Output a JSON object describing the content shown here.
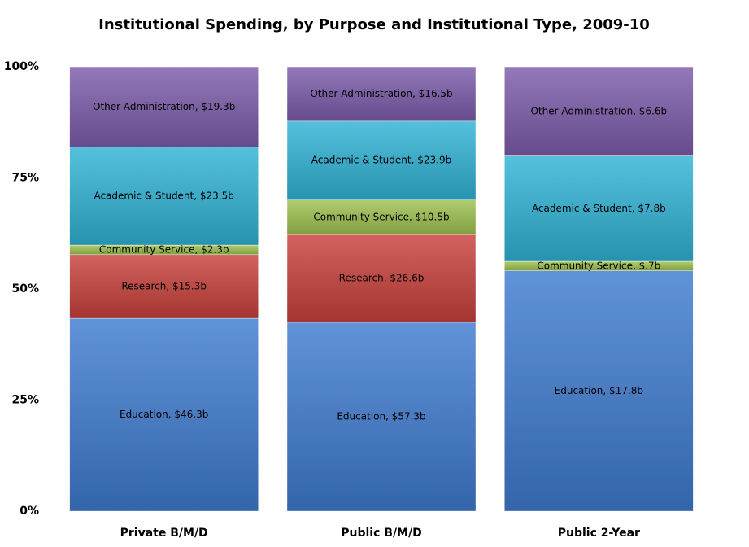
{
  "chart_data": {
    "type": "stacked_percent_bar",
    "title": "Institutional Spending, by Purpose and Institutional Type, 2009-10",
    "categories": [
      "Private B/M/D",
      "Public B/M/D",
      "Public 2-Year"
    ],
    "ylim": [
      0,
      100
    ],
    "yticks": [
      {
        "value": 0,
        "label": "0%"
      },
      {
        "value": 25,
        "label": "25%"
      },
      {
        "value": 50,
        "label": "50%"
      },
      {
        "value": 75,
        "label": "75%"
      },
      {
        "value": 100,
        "label": "100%"
      }
    ],
    "series": [
      {
        "color": "#3f7bd0",
        "values": [
          46.3,
          57.3,
          17.8
        ],
        "value_labels": [
          "Education, $46.3b",
          "Education, $57.3b",
          "Education, $17.8b"
        ]
      },
      {
        "color": "#c8403a",
        "values": [
          15.3,
          26.6,
          null
        ],
        "value_labels": [
          "Research, $15.3b",
          "Research, $26.6b",
          null
        ]
      },
      {
        "color": "#9ec24f",
        "values": [
          2.3,
          10.5,
          0.7
        ],
        "value_labels": [
          "Community Service, $2.3b",
          "Community Service, $10.5b",
          "Community Service, $.7b"
        ]
      },
      {
        "color": "#2fb3d6",
        "values": [
          23.5,
          23.9,
          7.8
        ],
        "value_labels": [
          "Academic & Student, $23.5b",
          "Academic & Student, $23.9b",
          "Academic & Student, $7.8b"
        ]
      },
      {
        "color": "#7c5bab",
        "values": [
          19.3,
          16.5,
          6.6
        ],
        "value_labels": [
          "Other Administration, $19.3b",
          "Other Administration, $16.5b",
          "Other Administration, $6.6b"
        ]
      }
    ]
  }
}
